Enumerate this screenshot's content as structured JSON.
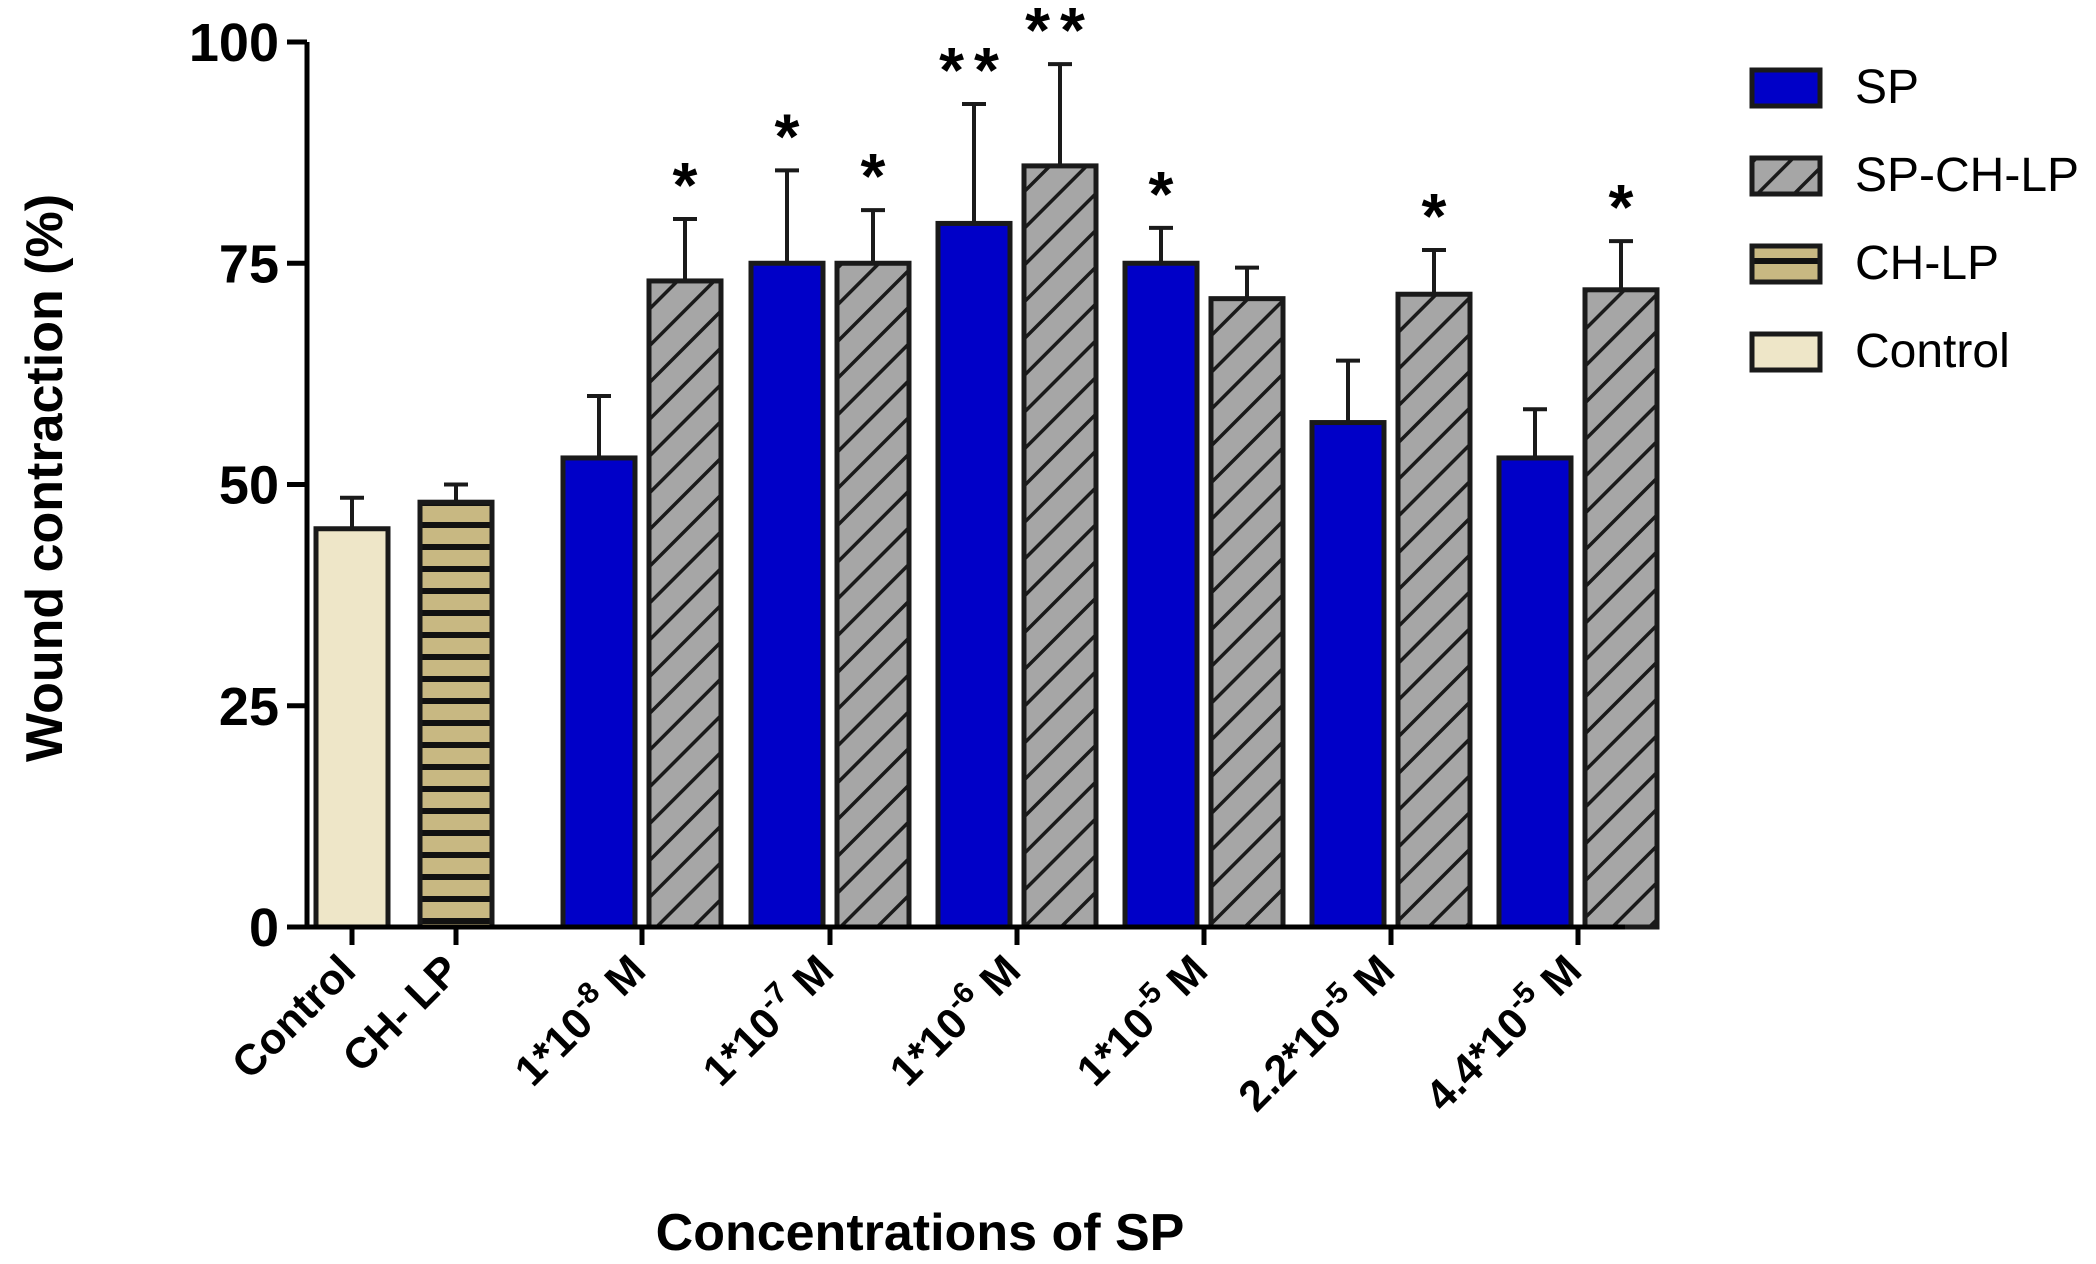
{
  "chart_data": {
    "type": "bar",
    "title": "",
    "xlabel": "Concentrations of SP",
    "ylabel": "Wound contraction (%)",
    "ylim": [
      0,
      100
    ],
    "yticks": [
      "0",
      "25",
      "50",
      "75",
      "100"
    ],
    "grid": false,
    "legend_position": "right",
    "categories": [
      {
        "base": "Control",
        "exp": "",
        "unit": ""
      },
      {
        "base": "CH- LP",
        "exp": "",
        "unit": ""
      },
      {
        "base": "1*10",
        "exp": "-8",
        "unit": " M"
      },
      {
        "base": "1*10",
        "exp": "-7",
        "unit": " M"
      },
      {
        "base": "1*10",
        "exp": "-6",
        "unit": " M"
      },
      {
        "base": "1*10",
        "exp": "-5",
        "unit": " M"
      },
      {
        "base": "2.2*10",
        "exp": "-5",
        "unit": " M"
      },
      {
        "base": "4.4*10",
        "exp": "-5",
        "unit": " M"
      }
    ],
    "series": [
      {
        "name": "SP",
        "color": "#0000c8",
        "pattern": "solid",
        "values": [
          null,
          null,
          53,
          75,
          79.5,
          75,
          57,
          53
        ],
        "errors": [
          null,
          null,
          7,
          10.5,
          13.5,
          4,
          7,
          5.5
        ],
        "significance": [
          "",
          "",
          "",
          "*",
          "**",
          "*",
          "",
          ""
        ]
      },
      {
        "name": "SP-CH-LP",
        "color": "#a6a6a6",
        "pattern": "diagonal-hatch",
        "values": [
          null,
          null,
          73,
          75,
          86,
          71,
          71.5,
          72
        ],
        "errors": [
          null,
          null,
          7,
          6,
          11.5,
          3.5,
          5,
          5.5
        ],
        "significance": [
          "",
          "",
          "*",
          "*",
          "**",
          "",
          "*",
          "*"
        ]
      },
      {
        "name": "CH-LP",
        "color": "#c8b882",
        "pattern": "horizontal-stripes",
        "values": [
          null,
          48,
          null,
          null,
          null,
          null,
          null,
          null
        ],
        "errors": [
          null,
          2,
          null,
          null,
          null,
          null,
          null,
          null
        ],
        "significance": [
          "",
          "",
          "",
          "",
          "",
          "",
          "",
          ""
        ]
      },
      {
        "name": "Control",
        "color": "#eee6c8",
        "pattern": "solid",
        "values": [
          45,
          null,
          null,
          null,
          null,
          null,
          null,
          null
        ],
        "errors": [
          3.5,
          null,
          null,
          null,
          null,
          null,
          null,
          null
        ],
        "significance": [
          "",
          "",
          "",
          "",
          "",
          "",
          "",
          ""
        ]
      }
    ],
    "legend_order": [
      "SP",
      "SP-CH-LP",
      "CH-LP",
      "Control"
    ]
  }
}
